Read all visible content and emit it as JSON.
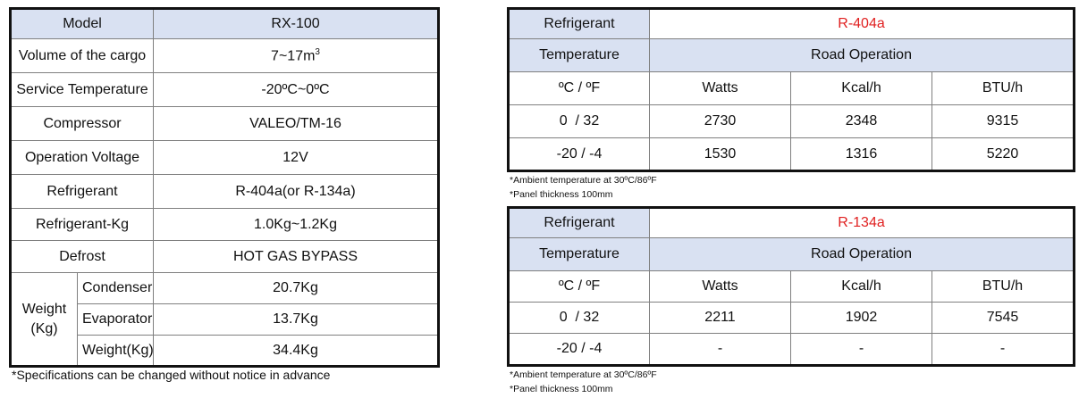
{
  "spec": {
    "model_label": "Model",
    "model_value": "RX-100",
    "rows": [
      {
        "label": "Volume of the cargo",
        "value": "7~17m",
        "sup": "3"
      },
      {
        "label": "Service Temperature",
        "value": "-20ºC~0ºC"
      },
      {
        "label": "Compressor",
        "value": "VALEO/TM-16"
      },
      {
        "label": "Operation Voltage",
        "value": "12V"
      },
      {
        "label": "Refrigerant",
        "value": "R-404a(or R-134a)"
      },
      {
        "label": "Refrigerant-Kg",
        "value": "1.0Kg~1.2Kg"
      },
      {
        "label": "Defrost",
        "value": "HOT GAS BYPASS"
      }
    ],
    "weight": {
      "label": "Weight\n(Kg)",
      "rows": [
        {
          "label": "Condenser",
          "value": "20.7Kg"
        },
        {
          "label": "Evaporator",
          "value": "13.7Kg"
        },
        {
          "label": "Weight(Kg)",
          "value": "34.4Kg"
        }
      ]
    },
    "footnote": "*Specifications can be changed without notice in advance"
  },
  "tables": [
    {
      "refrigerant_label": "Refrigerant",
      "refrigerant_value": "R-404a",
      "temp_label": "Temperature",
      "operation": "Road Operation",
      "columns": [
        "ºC / ºF",
        "Watts",
        "Kcal/h",
        "BTU/h"
      ],
      "rows": [
        [
          "0  / 32",
          "2730",
          "2348",
          "9315"
        ],
        [
          "-20 / -4",
          "1530",
          "1316",
          "5220"
        ]
      ],
      "notes": [
        "*Ambient temperature at 30ºC/86ºF",
        "*Panel thickness 100mm"
      ]
    },
    {
      "refrigerant_label": "Refrigerant",
      "refrigerant_value": "R-134a",
      "temp_label": "Temperature",
      "operation": "Road Operation",
      "columns": [
        "ºC / ºF",
        "Watts",
        "Kcal/h",
        "BTU/h"
      ],
      "rows": [
        [
          "0  / 32",
          "2211",
          "1902",
          "7545"
        ],
        [
          "-20 / -4",
          "-",
          "-",
          "-"
        ]
      ],
      "notes": [
        "*Ambient temperature at 30ºC/86ºF",
        "*Panel thickness 100mm"
      ]
    }
  ],
  "colors": {
    "header_bg": "#d9e1f2",
    "refrigerant_value": "#e02020",
    "border": "#111111"
  }
}
